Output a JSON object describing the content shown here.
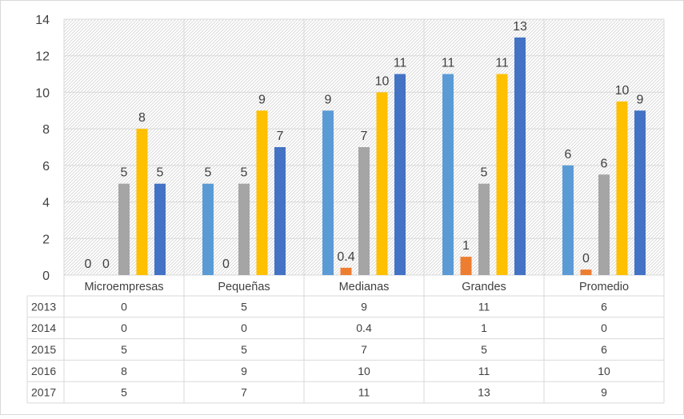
{
  "chart_data": {
    "type": "bar",
    "categories": [
      "Microempresas",
      "Pequeñas",
      "Medianas",
      "Grandes",
      "Promedio"
    ],
    "series": [
      {
        "name": "2013",
        "values": [
          0,
          5,
          9,
          11,
          6
        ],
        "labels": [
          "0",
          "5",
          "9",
          "11",
          "6"
        ],
        "color": "#5B9BD5"
      },
      {
        "name": "2014",
        "values": [
          0,
          0,
          0.4,
          1,
          0.3
        ],
        "labels": [
          "0",
          "0",
          "0.4",
          "1",
          "0"
        ],
        "color": "#ED7D31"
      },
      {
        "name": "2015",
        "values": [
          5,
          5,
          7,
          5,
          5.5
        ],
        "labels": [
          "5",
          "5",
          "7",
          "5",
          "6"
        ],
        "color": "#A5A5A5"
      },
      {
        "name": "2016",
        "values": [
          8,
          9,
          10,
          11,
          9.5
        ],
        "labels": [
          "8",
          "9",
          "10",
          "11",
          "10"
        ],
        "color": "#FFC000"
      },
      {
        "name": "2017",
        "values": [
          5,
          7,
          11,
          13,
          9
        ],
        "labels": [
          "5",
          "7",
          "11",
          "13",
          "9"
        ],
        "color": "#4472C4"
      }
    ],
    "table_rows": [
      {
        "year": "2013",
        "cells": [
          "0",
          "5",
          "9",
          "11",
          "6"
        ]
      },
      {
        "year": "2014",
        "cells": [
          "0",
          "0",
          "0.4",
          "1",
          "0"
        ]
      },
      {
        "year": "2015",
        "cells": [
          "5",
          "5",
          "7",
          "5",
          "6"
        ]
      },
      {
        "year": "2016",
        "cells": [
          "8",
          "9",
          "10",
          "11",
          "10"
        ]
      },
      {
        "year": "2017",
        "cells": [
          "5",
          "7",
          "11",
          "13",
          "9"
        ]
      }
    ],
    "y_ticks": [
      "0",
      "2",
      "4",
      "6",
      "8",
      "10",
      "12",
      "14"
    ],
    "ylim": [
      0,
      14
    ],
    "grid": true,
    "legend": "data-table",
    "title": "",
    "xlabel": "",
    "ylabel": ""
  }
}
